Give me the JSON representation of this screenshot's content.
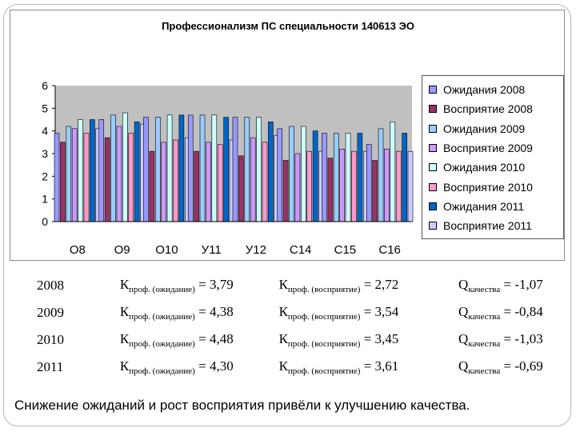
{
  "chart_data": {
    "type": "bar",
    "title": "Профессионализм ПС специальности 140613 ЭО",
    "categories": [
      "О8",
      "О9",
      "О10",
      "У11",
      "У12",
      "С14",
      "С15",
      "С16"
    ],
    "ylim": [
      0,
      6
    ],
    "yticks": [
      "0",
      "1",
      "2",
      "3",
      "4",
      "5",
      "6"
    ],
    "grid": false,
    "legend_position": "right",
    "series": [
      {
        "name": "Ожидания 2008",
        "color": "#9999ff",
        "values": [
          3.9,
          4.5,
          4.6,
          4.7,
          4.6,
          4.1,
          3.9,
          3.4
        ]
      },
      {
        "name": "Восприятие 2008",
        "color": "#993366",
        "values": [
          3.5,
          3.7,
          3.1,
          3.1,
          2.9,
          2.7,
          2.8,
          2.7
        ]
      },
      {
        "name": "Ожидания 2009",
        "color": "#99ccff",
        "values": [
          4.2,
          4.7,
          4.6,
          4.7,
          4.6,
          4.2,
          3.9,
          4.1
        ]
      },
      {
        "name": "Восприятие 2009",
        "color": "#cc99ff",
        "values": [
          4.1,
          4.2,
          3.5,
          3.5,
          3.7,
          3.0,
          3.2,
          3.2
        ]
      },
      {
        "name": "Ожидания 2010",
        "color": "#ccffff",
        "values": [
          4.5,
          4.8,
          4.7,
          4.7,
          4.6,
          4.2,
          3.9,
          4.4
        ]
      },
      {
        "name": "Восприятие 2010",
        "color": "#ff99cc",
        "values": [
          3.9,
          3.9,
          3.6,
          3.4,
          3.5,
          3.1,
          3.1,
          3.1
        ]
      },
      {
        "name": "Ожидания 2011",
        "color": "#0066cc",
        "values": [
          4.5,
          4.4,
          4.7,
          4.6,
          4.4,
          4.0,
          3.9,
          3.9
        ]
      },
      {
        "name": "Восприятие 2011",
        "color": "#ccccff",
        "values": [
          4.1,
          4.3,
          3.7,
          3.6,
          3.8,
          3.1,
          3.1,
          3.1
        ]
      }
    ]
  },
  "table": {
    "rows": [
      {
        "year": "2008",
        "exp_value": "= 3,79",
        "per_value": "= 2,72",
        "q_value": "= -1,07"
      },
      {
        "year": "2009",
        "exp_value": "= 4,38",
        "per_value": "= 3,54",
        "q_value": "= -0,84"
      },
      {
        "year": "2010",
        "exp_value": "= 4,48",
        "per_value": "= 3,45",
        "q_value": "= -1,03"
      },
      {
        "year": "2011",
        "exp_value": "= 4,30",
        "per_value": "= 3,61",
        "q_value": "= -0,69"
      }
    ],
    "k_symbol": "К",
    "exp_subscript": "проф. (ожидание)",
    "per_subscript": "проф. (восприятие)",
    "q_symbol": "Q",
    "q_subscript": "качества"
  },
  "conclusion": "Снижение ожиданий и рост восприятия привёли к улучшению качества."
}
